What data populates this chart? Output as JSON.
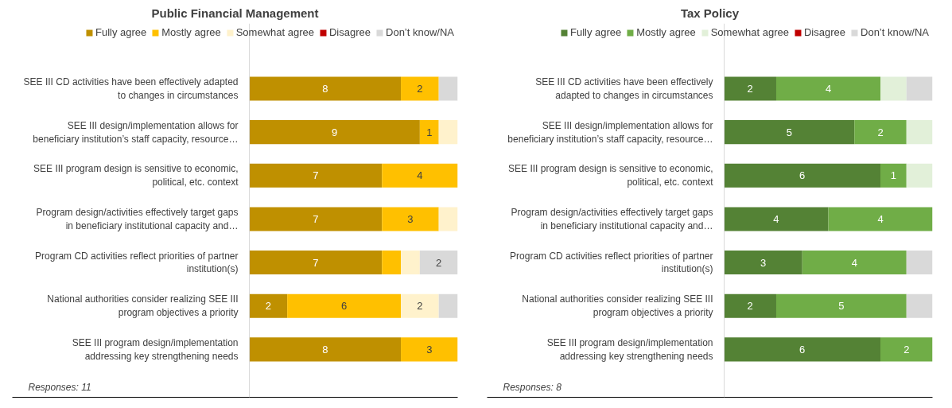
{
  "chart_data": [
    {
      "type": "bar",
      "orientation": "horizontal",
      "stacked": true,
      "title": "Public Financial Management",
      "legend": "top",
      "categories": [
        "SEE III CD activities have been effectively adapted\nto changes in circumstances",
        "SEE III design/implementation allows for\nbeneficiary institution’s staff capacity, resource…",
        "SEE III program design is sensitive to economic,\npolitical, etc. context",
        "Program design/activities effectively target gaps\nin beneficiary institutional capacity and…",
        "Program CD activities reflect priorities of partner\ninstitution(s)",
        "National authorities consider realizing SEE III\nprogram objectives a priority",
        "SEE III program design/implementation\naddressing key strengthening needs"
      ],
      "series": [
        {
          "name": "Fully agree",
          "color": "#bf9000",
          "values": [
            8,
            9,
            7,
            7,
            7,
            2,
            8
          ],
          "value_labels": [
            "8",
            "9",
            "7",
            "7",
            "7",
            "2",
            "8"
          ]
        },
        {
          "name": "Mostly agree",
          "color": "#ffc000",
          "values": [
            2,
            1,
            4,
            3,
            1,
            6,
            3
          ],
          "value_labels": [
            "2",
            "1",
            "4",
            "3",
            null,
            "6",
            "3"
          ]
        },
        {
          "name": "Somewhat agree",
          "color": "#fff2cc",
          "values": [
            0,
            1,
            0,
            1,
            1,
            2,
            0
          ],
          "value_labels": [
            null,
            null,
            null,
            null,
            null,
            "2",
            null
          ]
        },
        {
          "name": "Disagree",
          "color": "#c00000",
          "values": [
            0,
            0,
            0,
            0,
            0,
            0,
            0
          ],
          "value_labels": [
            null,
            null,
            null,
            null,
            null,
            null,
            null
          ]
        },
        {
          "name": "Don’t know/NA",
          "color": "#d9d9d9",
          "values": [
            1,
            0,
            0,
            0,
            2,
            1,
            0
          ],
          "value_labels": [
            null,
            null,
            null,
            null,
            "2",
            null,
            null
          ]
        }
      ],
      "annotations": [
        "Responses: 11"
      ]
    },
    {
      "type": "bar",
      "orientation": "horizontal",
      "stacked": true,
      "title": "Tax Policy",
      "legend": "top",
      "categories": [
        "SEE III CD activities have been effectively\nadapted to changes in circumstances",
        "SEE III design/implementation allows for\nbeneficiary institution’s staff capacity, resource…",
        "SEE III program design is sensitive to economic,\npolitical, etc. context",
        "Program design/activities effectively target gaps\nin beneficiary institutional capacity and…",
        "Program CD activities reflect priorities of partner\ninstitution(s)",
        "National authorities consider realizing SEE III\nprogram objectives a priority",
        "SEE III program design/implementation\naddressing key strengthening needs"
      ],
      "series": [
        {
          "name": "Fully agree",
          "color": "#548235",
          "values": [
            2,
            5,
            6,
            4,
            3,
            2,
            6
          ],
          "value_labels": [
            "2",
            "5",
            "6",
            "4",
            "3",
            "2",
            "6"
          ]
        },
        {
          "name": "Mostly agree",
          "color": "#70ad47",
          "values": [
            4,
            2,
            1,
            4,
            4,
            5,
            2
          ],
          "value_labels": [
            "4",
            "2",
            "1",
            "4",
            "4",
            "5",
            "2"
          ]
        },
        {
          "name": "Somewhat agree",
          "color": "#e2f0d9",
          "values": [
            1,
            1,
            1,
            0,
            0,
            0,
            0
          ],
          "value_labels": [
            null,
            null,
            null,
            null,
            null,
            null,
            null
          ]
        },
        {
          "name": "Disagree",
          "color": "#c00000",
          "values": [
            0,
            0,
            0,
            0,
            0,
            0,
            0
          ],
          "value_labels": [
            null,
            null,
            null,
            null,
            null,
            null,
            null
          ]
        },
        {
          "name": "Don’t know/NA",
          "color": "#d9d9d9",
          "values": [
            1,
            0,
            0,
            0,
            1,
            1,
            0
          ],
          "value_labels": [
            null,
            null,
            null,
            null,
            null,
            null,
            null
          ]
        }
      ],
      "annotations": [
        "Responses:  8"
      ]
    }
  ]
}
